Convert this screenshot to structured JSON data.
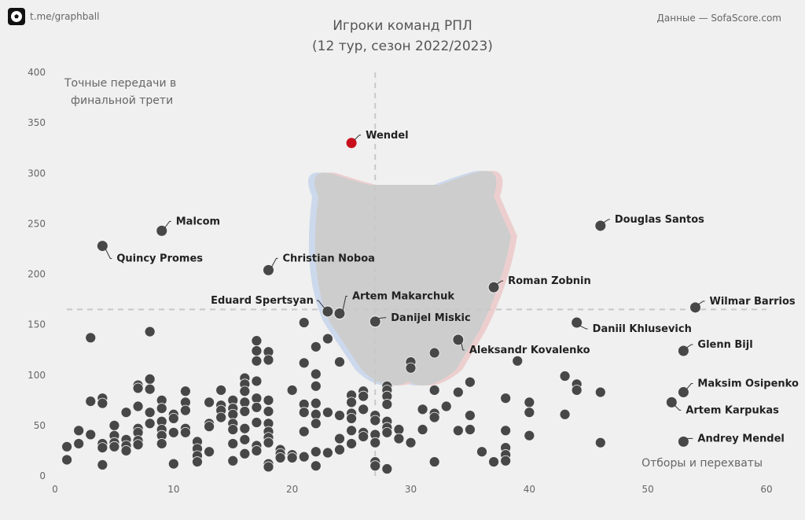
{
  "brand": {
    "text": "t.me/graphball",
    "logo_icon": "soccer-ball-icon"
  },
  "source": "Данные — SofaScore.com",
  "chart_data": {
    "type": "scatter",
    "title": "Игроки команд РПЛ",
    "subtitle": "(12 тур, сезон 2022/2023)",
    "ylabel_lines": [
      "Точные передачи в",
      "финальной трети"
    ],
    "xlabel": "Отборы и перехваты",
    "xlim": [
      0,
      60
    ],
    "ylim": [
      0,
      400
    ],
    "x_ticks": [
      0,
      10,
      20,
      30,
      40,
      50,
      60
    ],
    "y_ticks": [
      0,
      50,
      100,
      150,
      200,
      250,
      300,
      350,
      400
    ],
    "reference_lines": {
      "x": 27,
      "y": 165
    },
    "colors": {
      "point": "#474747",
      "highlight": "#c8101c"
    },
    "labeled_points": [
      {
        "name": "Wendel",
        "x": 25,
        "y": 330,
        "highlight": true
      },
      {
        "name": "Malcom",
        "x": 9,
        "y": 243
      },
      {
        "name": "Quincy Promes",
        "x": 4,
        "y": 228
      },
      {
        "name": "Christian Noboa",
        "x": 18,
        "y": 204
      },
      {
        "name": "Douglas Santos",
        "x": 46,
        "y": 248
      },
      {
        "name": "Roman Zobnin",
        "x": 37,
        "y": 187
      },
      {
        "name": "Eduard Spertsyan",
        "x": 23,
        "y": 163
      },
      {
        "name": "Artem Makarchuk",
        "x": 24,
        "y": 161
      },
      {
        "name": "Danijel Miskic",
        "x": 27,
        "y": 153
      },
      {
        "name": "Wilmar Barrios",
        "x": 54,
        "y": 167
      },
      {
        "name": "Daniil Khlusevich",
        "x": 44,
        "y": 152
      },
      {
        "name": "Aleksandr Kovalenko",
        "x": 34,
        "y": 135
      },
      {
        "name": "Glenn Bijl",
        "x": 53,
        "y": 124
      },
      {
        "name": "Maksim Osipenko",
        "x": 53,
        "y": 83
      },
      {
        "name": "Artem Karpukas",
        "x": 52,
        "y": 73
      },
      {
        "name": "Andrey Mendel",
        "x": 53,
        "y": 34
      }
    ],
    "points": [
      [
        1,
        29
      ],
      [
        1,
        16
      ],
      [
        2,
        45
      ],
      [
        2,
        32
      ],
      [
        3,
        137
      ],
      [
        3,
        74
      ],
      [
        3,
        41
      ],
      [
        4,
        77
      ],
      [
        4,
        72
      ],
      [
        4,
        32
      ],
      [
        4,
        28
      ],
      [
        4,
        11
      ],
      [
        5,
        50
      ],
      [
        5,
        40
      ],
      [
        5,
        33
      ],
      [
        5,
        29
      ],
      [
        6,
        63
      ],
      [
        6,
        36
      ],
      [
        6,
        30
      ],
      [
        6,
        25
      ],
      [
        7,
        90
      ],
      [
        7,
        87
      ],
      [
        7,
        69
      ],
      [
        7,
        47
      ],
      [
        7,
        43
      ],
      [
        7,
        35
      ],
      [
        7,
        31
      ],
      [
        8,
        143
      ],
      [
        8,
        96
      ],
      [
        8,
        86
      ],
      [
        8,
        63
      ],
      [
        8,
        52
      ],
      [
        9,
        75
      ],
      [
        9,
        67
      ],
      [
        9,
        54
      ],
      [
        9,
        46
      ],
      [
        9,
        40
      ],
      [
        9,
        32
      ],
      [
        10,
        61
      ],
      [
        10,
        57
      ],
      [
        10,
        43
      ],
      [
        10,
        12
      ],
      [
        11,
        84
      ],
      [
        11,
        73
      ],
      [
        11,
        65
      ],
      [
        11,
        47
      ],
      [
        11,
        43
      ],
      [
        12,
        34
      ],
      [
        12,
        27
      ],
      [
        12,
        20
      ],
      [
        12,
        14
      ],
      [
        13,
        73
      ],
      [
        13,
        52
      ],
      [
        13,
        49
      ],
      [
        13,
        24
      ],
      [
        14,
        85
      ],
      [
        14,
        70
      ],
      [
        14,
        65
      ],
      [
        14,
        58
      ],
      [
        15,
        75
      ],
      [
        15,
        67
      ],
      [
        15,
        61
      ],
      [
        15,
        52
      ],
      [
        15,
        46
      ],
      [
        15,
        32
      ],
      [
        15,
        15
      ],
      [
        16,
        97
      ],
      [
        16,
        91
      ],
      [
        16,
        84
      ],
      [
        16,
        73
      ],
      [
        16,
        64
      ],
      [
        16,
        47
      ],
      [
        16,
        36
      ],
      [
        16,
        22
      ],
      [
        17,
        134
      ],
      [
        17,
        124
      ],
      [
        17,
        114
      ],
      [
        17,
        94
      ],
      [
        17,
        77
      ],
      [
        17,
        68
      ],
      [
        17,
        53
      ],
      [
        17,
        30
      ],
      [
        17,
        25
      ],
      [
        18,
        123
      ],
      [
        18,
        115
      ],
      [
        18,
        75
      ],
      [
        18,
        64
      ],
      [
        18,
        52
      ],
      [
        18,
        44
      ],
      [
        18,
        38
      ],
      [
        18,
        33
      ],
      [
        18,
        12
      ],
      [
        18,
        9
      ],
      [
        19,
        26
      ],
      [
        19,
        22
      ],
      [
        19,
        18
      ],
      [
        20,
        85
      ],
      [
        20,
        21
      ],
      [
        20,
        18
      ],
      [
        21,
        152
      ],
      [
        21,
        112
      ],
      [
        21,
        71
      ],
      [
        21,
        63
      ],
      [
        21,
        44
      ],
      [
        21,
        19
      ],
      [
        22,
        128
      ],
      [
        22,
        101
      ],
      [
        22,
        89
      ],
      [
        22,
        72
      ],
      [
        22,
        61
      ],
      [
        22,
        52
      ],
      [
        22,
        24
      ],
      [
        22,
        10
      ],
      [
        23,
        136
      ],
      [
        23,
        63
      ],
      [
        23,
        23
      ],
      [
        24,
        113
      ],
      [
        24,
        60
      ],
      [
        24,
        37
      ],
      [
        24,
        26
      ],
      [
        25,
        80
      ],
      [
        25,
        73
      ],
      [
        25,
        62
      ],
      [
        25,
        57
      ],
      [
        25,
        45
      ],
      [
        25,
        32
      ],
      [
        26,
        84
      ],
      [
        26,
        79
      ],
      [
        26,
        66
      ],
      [
        26,
        43
      ],
      [
        26,
        39
      ],
      [
        27,
        60
      ],
      [
        27,
        55
      ],
      [
        27,
        41
      ],
      [
        27,
        33
      ],
      [
        27,
        14
      ],
      [
        27,
        10
      ],
      [
        28,
        89
      ],
      [
        28,
        85
      ],
      [
        28,
        79
      ],
      [
        28,
        71
      ],
      [
        28,
        54
      ],
      [
        28,
        48
      ],
      [
        28,
        43
      ],
      [
        28,
        7
      ],
      [
        29,
        46
      ],
      [
        29,
        37
      ],
      [
        30,
        113
      ],
      [
        30,
        107
      ],
      [
        30,
        33
      ],
      [
        31,
        66
      ],
      [
        31,
        46
      ],
      [
        32,
        122
      ],
      [
        32,
        85
      ],
      [
        32,
        62
      ],
      [
        32,
        58
      ],
      [
        32,
        14
      ],
      [
        33,
        69
      ],
      [
        34,
        83
      ],
      [
        34,
        45
      ],
      [
        35,
        93
      ],
      [
        35,
        60
      ],
      [
        35,
        46
      ],
      [
        36,
        24
      ],
      [
        37,
        14
      ],
      [
        38,
        77
      ],
      [
        38,
        45
      ],
      [
        38,
        28
      ],
      [
        38,
        21
      ],
      [
        38,
        15
      ],
      [
        39,
        114
      ],
      [
        40,
        73
      ],
      [
        40,
        63
      ],
      [
        40,
        40
      ],
      [
        43,
        99
      ],
      [
        43,
        61
      ],
      [
        44,
        91
      ],
      [
        44,
        85
      ],
      [
        46,
        83
      ],
      [
        46,
        33
      ]
    ]
  }
}
